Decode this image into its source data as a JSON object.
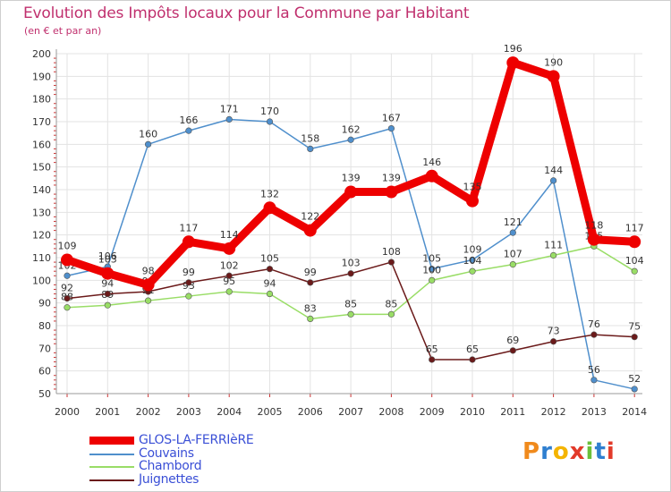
{
  "header": {
    "title": "Evolution des Impôts locaux pour la Commune par Habitant",
    "subtitle": "(en € et par an)"
  },
  "logo": {
    "letters": [
      "P",
      "r",
      "o",
      "x",
      "i",
      "t",
      "i"
    ],
    "colors": [
      "#f08a1c",
      "#2f7fd0",
      "#f4b400",
      "#e23a2a",
      "#6bbf3a",
      "#2f7fd0",
      "#e23a2a"
    ]
  },
  "chart_data": {
    "type": "line",
    "title": "Evolution des Impôts locaux pour la Commune par Habitant",
    "subtitle": "(en € et par an)",
    "x": [
      "2000",
      "2001",
      "2002",
      "2003",
      "2004",
      "2005",
      "2006",
      "2007",
      "2008",
      "2009",
      "2010",
      "2011",
      "2012",
      "2013",
      "2014"
    ],
    "ylim": [
      50,
      200
    ],
    "yticks": [
      50,
      60,
      70,
      80,
      90,
      100,
      110,
      120,
      130,
      140,
      150,
      160,
      170,
      180,
      190,
      200
    ],
    "grid": true,
    "legend_position": "bottom-left",
    "series": [
      {
        "name": "Couvains",
        "color": "#4f8fcc",
        "values": [
          102,
          106,
          160,
          166,
          171,
          170,
          158,
          162,
          167,
          105,
          109,
          121,
          144,
          56,
          52
        ]
      },
      {
        "name": "Chambord",
        "color": "#99dd66",
        "values": [
          88,
          89,
          91,
          93,
          95,
          94,
          83,
          85,
          85,
          100,
          104,
          107,
          111,
          115,
          104
        ]
      },
      {
        "name": "Juignettes",
        "color": "#6b1a1a",
        "values": [
          92,
          94,
          95,
          99,
          102,
          105,
          99,
          103,
          108,
          65,
          65,
          69,
          73,
          76,
          75
        ]
      },
      {
        "name": "GLOS-LA-FERRIèRE",
        "color": "#ee0000",
        "values": [
          109,
          103,
          98,
          117,
          114,
          132,
          122,
          139,
          139,
          146,
          135,
          196,
          190,
          118,
          117
        ]
      }
    ]
  }
}
